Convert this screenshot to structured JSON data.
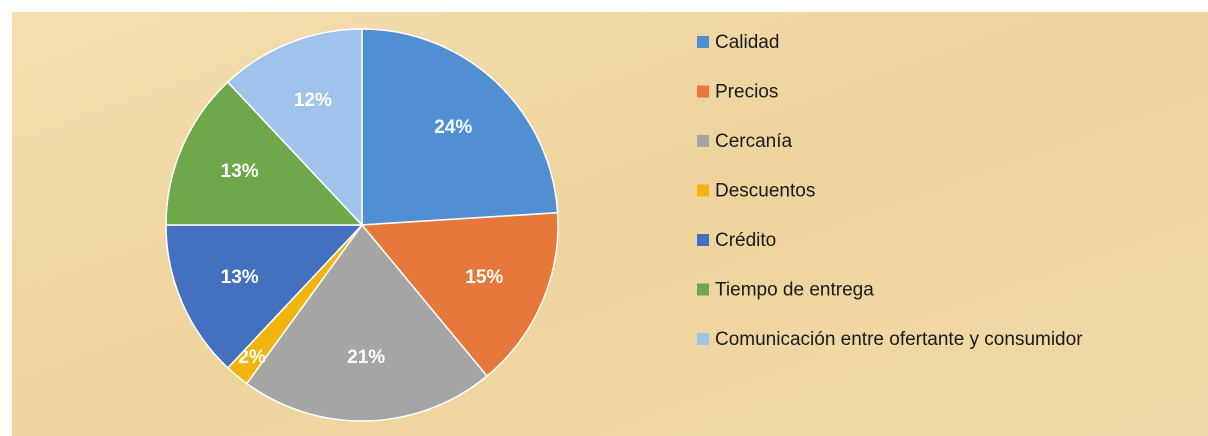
{
  "chart_data": {
    "type": "pie",
    "categories": [
      "Calidad",
      "Precios",
      "Cercanía",
      "Descuentos",
      "Crédito",
      "Tiempo de entrega",
      "Comunicación entre ofertante y consumidor"
    ],
    "values": [
      24,
      15,
      21,
      2,
      13,
      13,
      12
    ],
    "value_labels": [
      "24%",
      "15%",
      "21%",
      "2%",
      "13%",
      "13%",
      "12%"
    ],
    "colors": [
      "#5090d2",
      "#e5783a",
      "#a5a5a5",
      "#f2b50f",
      "#4470c0",
      "#6ea84a",
      "#9fc3ea"
    ]
  }
}
